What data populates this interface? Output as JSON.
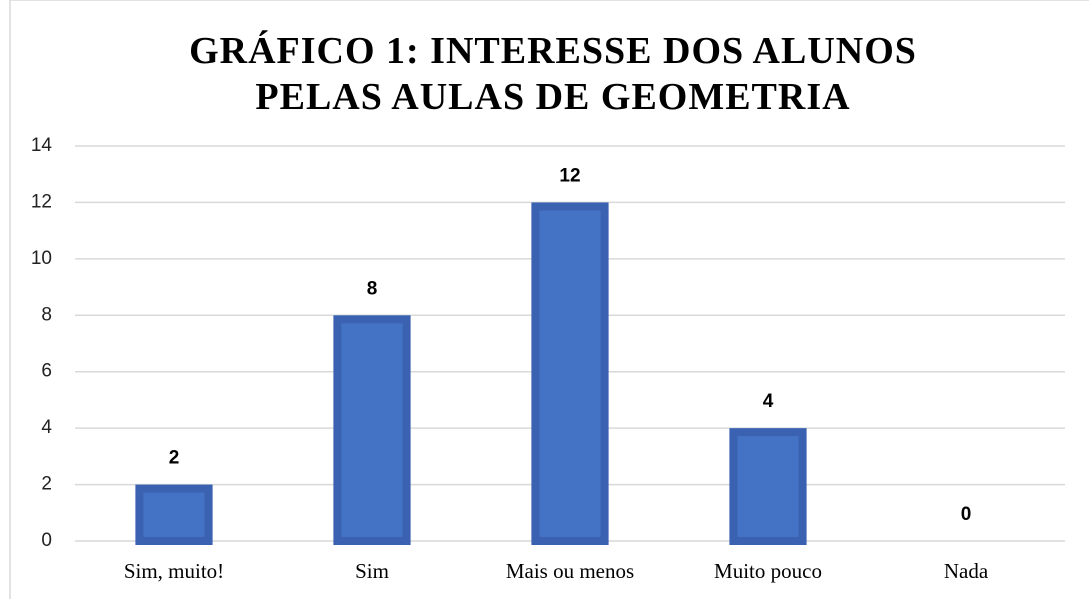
{
  "chart_data": {
    "type": "bar",
    "title": "GRÁFICO 1: INTERESSE DOS ALUNOS PELAS AULAS DE GEOMETRIA",
    "categories": [
      "Sim, muito!",
      "Sim",
      "Mais ou menos",
      "Muito pouco",
      "Nada"
    ],
    "values": [
      2,
      8,
      12,
      4,
      0
    ],
    "color": "#4472c4",
    "ylim": [
      0,
      14
    ],
    "yticks": [
      0,
      2,
      4,
      6,
      8,
      10,
      12,
      14
    ],
    "grid": true
  }
}
